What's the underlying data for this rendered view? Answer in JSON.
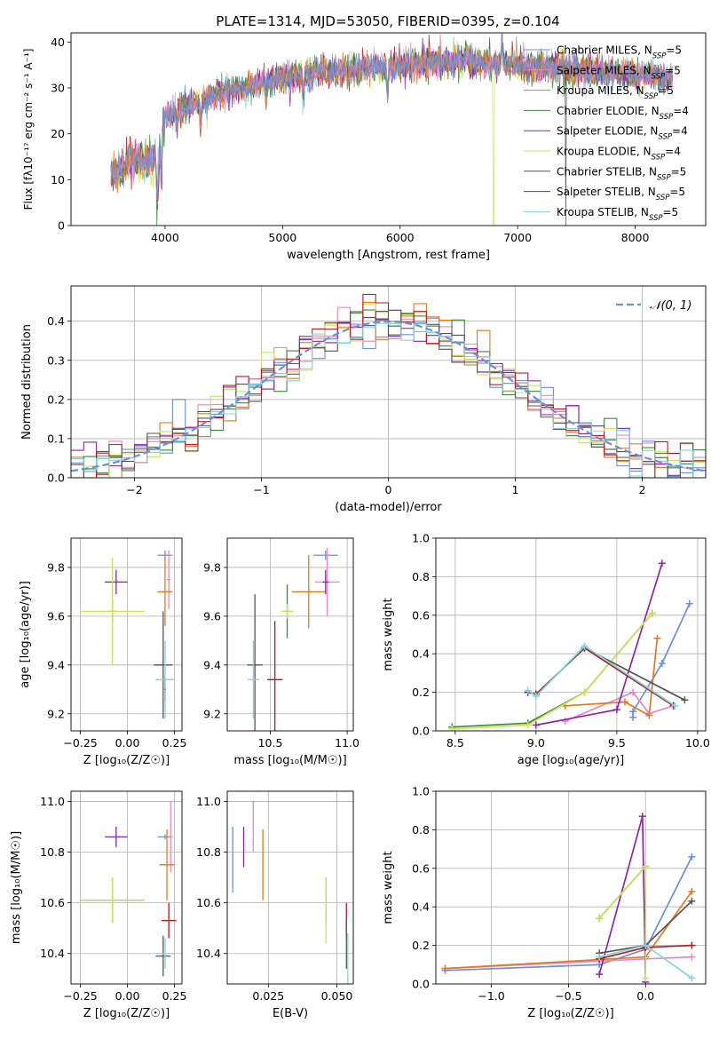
{
  "figure_title": "PLATE=1314, MJD=53050, FIBERID=0395, z=0.104",
  "colors": {
    "Chabrier MILES": "#6a8fdc",
    "Salpeter MILES": "#e787c5",
    "Kroupa MILES": "#e07b20",
    "Chabrier ELODIE": "#3a8a3a",
    "Salpeter ELODIE": "#8e24aa",
    "Kroupa ELODIE": "#c9e55a",
    "Chabrier STELIB": "#555555",
    "Salpeter STELIB": "#b71c1c",
    "Kroupa STELIB": "#7fd6e0"
  },
  "legend_prefix": [
    "Chabrier MILES, N",
    "Salpeter MILES, N",
    "Kroupa MILES, N",
    "Chabrier ELODIE, N",
    "Salpeter ELODIE, N",
    "Kroupa ELODIE, N",
    "Chabrier STELIB, N",
    "Salpeter STELIB, N",
    "Kroupa STELIB, N"
  ],
  "legend_suffix": [
    "=5",
    "=5",
    "=5",
    "=4",
    "=4",
    "=4",
    "=5",
    "=5",
    "=5"
  ],
  "chart_data": [
    {
      "type": "line",
      "xlabel": "wavelength [Angstrom, rest frame]",
      "ylabel": "Flux [fλ10⁻¹⁷ erg cm⁻² s⁻¹ A⁻¹]",
      "xlim": [
        3200,
        8600
      ],
      "ylim": [
        0,
        42
      ],
      "xticks": [
        "4000",
        "5000",
        "6000",
        "7000",
        "8000"
      ],
      "yticks": [
        "0",
        "10",
        "20",
        "30",
        "40"
      ],
      "x_range": [
        3540,
        8320
      ],
      "continuum": [
        [
          3540,
          11
        ],
        [
          3700,
          14
        ],
        [
          3800,
          14
        ],
        [
          3950,
          15
        ],
        [
          4000,
          24
        ],
        [
          4200,
          26
        ],
        [
          4400,
          28
        ],
        [
          4800,
          31
        ],
        [
          5200,
          33
        ],
        [
          5600,
          34
        ],
        [
          6000,
          35
        ],
        [
          6500,
          36
        ],
        [
          7000,
          35
        ],
        [
          7500,
          34
        ],
        [
          8000,
          33
        ],
        [
          8320,
          32
        ]
      ],
      "series": [
        {
          "name": "Chabrier MILES",
          "nssp": 5
        },
        {
          "name": "Salpeter MILES",
          "nssp": 5
        },
        {
          "name": "Kroupa MILES",
          "nssp": 5
        },
        {
          "name": "Chabrier ELODIE",
          "nssp": 4
        },
        {
          "name": "Salpeter ELODIE",
          "nssp": 4
        },
        {
          "name": "Kroupa ELODIE",
          "nssp": 4
        },
        {
          "name": "Chabrier STELIB",
          "nssp": 5
        },
        {
          "name": "Salpeter STELIB",
          "nssp": 5
        },
        {
          "name": "Kroupa STELIB",
          "nssp": 5
        }
      ]
    },
    {
      "type": "step",
      "xlabel": "(data-model)/error",
      "ylabel": "Normed distribution",
      "xlim": [
        -2.5,
        2.5
      ],
      "ylim": [
        0,
        0.49
      ],
      "xticks": [
        "−2",
        "−1",
        "0",
        "1",
        "2"
      ],
      "yticks": [
        "0.0",
        "0.1",
        "0.2",
        "0.3",
        "0.4"
      ],
      "reference_label": "𝒩(0, 1)",
      "bin_width": 0.1
    },
    {
      "type": "scatter",
      "xlabel": "Z [log₁₀(Z/Z☉)]",
      "ylabel": "age  [log₁₀(age/yr)]",
      "xlim": [
        -0.3,
        0.29
      ],
      "ylim": [
        9.13,
        9.92
      ],
      "xticks": [
        "−0.25",
        "0.00",
        "0.25"
      ],
      "yticks": [
        "9.2",
        "9.4",
        "9.6",
        "9.8"
      ],
      "points": [
        {
          "series": "Chabrier MILES",
          "x": 0.2,
          "y": 9.85,
          "xerr": 0.04,
          "yerr": 0.02
        },
        {
          "series": "Salpeter MILES",
          "x": 0.22,
          "y": 9.75,
          "xerr": 0.01,
          "yerr": 0.12
        },
        {
          "series": "Kroupa MILES",
          "x": 0.2,
          "y": 9.7,
          "xerr": 0.04,
          "yerr": 0.14
        },
        {
          "series": "Chabrier ELODIE",
          "x": -0.08,
          "y": 9.62,
          "xerr": 0.02,
          "yerr": 0.05
        },
        {
          "series": "Salpeter ELODIE",
          "x": -0.06,
          "y": 9.74,
          "xerr": 0.06,
          "yerr": 0.05
        },
        {
          "series": "Kroupa ELODIE",
          "x": -0.08,
          "y": 9.62,
          "xerr": 0.17,
          "yerr": 0.22
        },
        {
          "series": "Chabrier STELIB",
          "x": 0.19,
          "y": 9.4,
          "xerr": 0.05,
          "yerr": 0.22
        },
        {
          "series": "Salpeter STELIB",
          "x": 0.2,
          "y": 9.3,
          "xerr": 0.005,
          "yerr": 0.05
        },
        {
          "series": "Kroupa STELIB",
          "x": 0.2,
          "y": 9.34,
          "xerr": 0.05,
          "yerr": 0.16
        }
      ]
    },
    {
      "type": "scatter",
      "xlabel": "mass [log₁₀(M/M☉)]",
      "ylabel": "",
      "xlim": [
        10.22,
        11.04
      ],
      "ylim": [
        9.13,
        9.92
      ],
      "xticks": [
        "10.5",
        "11.0"
      ],
      "yticks": [
        "9.2",
        "9.4",
        "9.6",
        "9.8"
      ],
      "points": [
        {
          "series": "Chabrier MILES",
          "x": 10.86,
          "y": 9.85,
          "xerr": 0.08,
          "yerr": 0.02
        },
        {
          "series": "Salpeter MILES",
          "x": 10.87,
          "y": 9.74,
          "xerr": 0.08,
          "yerr": 0.14
        },
        {
          "series": "Kroupa MILES",
          "x": 10.75,
          "y": 9.7,
          "xerr": 0.11,
          "yerr": 0.15
        },
        {
          "series": "Chabrier ELODIE",
          "x": 10.61,
          "y": 9.62,
          "xerr": 0.02,
          "yerr": 0.11
        },
        {
          "series": "Salpeter ELODIE",
          "x": 10.86,
          "y": 9.74,
          "xerr": 0.02,
          "yerr": 0.05
        },
        {
          "series": "Kroupa ELODIE",
          "x": 10.61,
          "y": 9.62,
          "xerr": 0.04,
          "yerr": 0.03
        },
        {
          "series": "Chabrier STELIB",
          "x": 10.4,
          "y": 9.4,
          "xerr": 0.05,
          "yerr": 0.29
        },
        {
          "series": "Salpeter STELIB",
          "x": 10.53,
          "y": 9.34,
          "xerr": 0.05,
          "yerr": 0.24
        },
        {
          "series": "Kroupa STELIB",
          "x": 10.39,
          "y": 9.34,
          "xerr": 0.04,
          "yerr": 0.16
        }
      ]
    },
    {
      "type": "line",
      "xlabel": "age  [log₁₀(age/yr)]",
      "ylabel": "mass weight",
      "xlim": [
        8.38,
        10.05
      ],
      "ylim": [
        0,
        1.0
      ],
      "xticks": [
        "8.5",
        "9.0",
        "9.5",
        "10.0"
      ],
      "yticks": [
        "0.0",
        "0.2",
        "0.4",
        "0.6",
        "0.8",
        "1.0"
      ],
      "series": [
        {
          "name": "Chabrier MILES",
          "points": [
            [
              9.6,
              0.07
            ],
            [
              9.6,
              0.1
            ],
            [
              9.78,
              0.35
            ],
            [
              9.95,
              0.66
            ]
          ]
        },
        {
          "name": "Salpeter MILES",
          "points": [
            [
              9.18,
              0.05
            ],
            [
              9.6,
              0.2
            ],
            [
              9.7,
              0.09
            ],
            [
              9.85,
              0.13
            ]
          ]
        },
        {
          "name": "Kroupa MILES",
          "points": [
            [
              9.18,
              0.13
            ],
            [
              9.55,
              0.15
            ],
            [
              9.7,
              0.08
            ],
            [
              9.75,
              0.48
            ]
          ]
        },
        {
          "name": "Chabrier ELODIE",
          "points": [
            [
              8.48,
              0.02
            ],
            [
              8.95,
              0.04
            ],
            [
              9.3,
              0.2
            ],
            [
              9.72,
              0.61
            ]
          ]
        },
        {
          "name": "Salpeter ELODIE",
          "points": [
            [
              9.0,
              0.03
            ],
            [
              9.5,
              0.11
            ],
            [
              9.78,
              0.87
            ]
          ]
        },
        {
          "name": "Kroupa ELODIE",
          "points": [
            [
              8.48,
              0.01
            ],
            [
              8.95,
              0.03
            ],
            [
              9.3,
              0.2
            ],
            [
              9.72,
              0.61
            ]
          ]
        },
        {
          "name": "Chabrier STELIB",
          "points": [
            [
              8.95,
              0.2
            ],
            [
              9.0,
              0.19
            ],
            [
              9.3,
              0.43
            ],
            [
              9.92,
              0.16
            ]
          ]
        },
        {
          "name": "Salpeter STELIB",
          "points": [
            [
              8.95,
              0.2
            ],
            [
              9.0,
              0.19
            ],
            [
              9.3,
              0.43
            ],
            [
              9.85,
              0.13
            ]
          ]
        },
        {
          "name": "Kroupa STELIB",
          "points": [
            [
              8.95,
              0.21
            ],
            [
              9.0,
              0.18
            ],
            [
              9.3,
              0.44
            ],
            [
              9.86,
              0.13
            ]
          ]
        }
      ]
    },
    {
      "type": "scatter",
      "xlabel": "Z [log₁₀(Z/Z☉)]",
      "ylabel": "mass [log₁₀(M/M☉)]",
      "xlim": [
        -0.3,
        0.29
      ],
      "ylim": [
        10.28,
        11.04
      ],
      "xticks": [
        "−0.25",
        "0.00",
        "0.25"
      ],
      "yticks": [
        "10.4",
        "10.6",
        "10.8",
        "11.0"
      ],
      "points": [
        {
          "series": "Chabrier MILES",
          "x": 0.2,
          "y": 10.86,
          "xerr": 0.04,
          "yerr": 0.01
        },
        {
          "series": "Salpeter MILES",
          "x": 0.23,
          "y": 10.86,
          "xerr": 0.01,
          "yerr": 0.14
        },
        {
          "series": "Kroupa MILES",
          "x": 0.21,
          "y": 10.75,
          "xerr": 0.04,
          "yerr": 0.14
        },
        {
          "series": "Chabrier ELODIE",
          "x": -0.08,
          "y": 10.61,
          "xerr": 0.17,
          "yerr": 0.09
        },
        {
          "series": "Salpeter ELODIE",
          "x": -0.06,
          "y": 10.86,
          "xerr": 0.06,
          "yerr": 0.04
        },
        {
          "series": "Kroupa ELODIE",
          "x": -0.08,
          "y": 10.61,
          "xerr": 0.17,
          "yerr": 0.09
        },
        {
          "series": "Chabrier STELIB",
          "x": 0.19,
          "y": 10.39,
          "xerr": 0.04,
          "yerr": 0.08
        },
        {
          "series": "Salpeter STELIB",
          "x": 0.22,
          "y": 10.53,
          "xerr": 0.04,
          "yerr": 0.07
        },
        {
          "series": "Kroupa STELIB",
          "x": 0.2,
          "y": 10.4,
          "xerr": 0.05,
          "yerr": 0.06
        }
      ]
    },
    {
      "type": "scatter",
      "xlabel": "E(B-V)",
      "ylabel": "",
      "xlim": [
        0.01,
        0.056
      ],
      "ylim": [
        10.28,
        11.04
      ],
      "xticks": [
        "0.025",
        "0.050"
      ],
      "yticks": [
        "10.4",
        "10.6",
        "10.8",
        "11.0"
      ],
      "points": [
        {
          "series": "Chabrier MILES",
          "x": 0.012,
          "y": 10.77,
          "xerr": 0,
          "yerr": 0.13
        },
        {
          "series": "Salpeter MILES",
          "x": 0.0195,
          "y": 10.9,
          "xerr": 0,
          "yerr": 0.1
        },
        {
          "series": "Kroupa MILES",
          "x": 0.023,
          "y": 10.75,
          "xerr": 0,
          "yerr": 0.14
        },
        {
          "series": "Salpeter ELODIE",
          "x": 0.016,
          "y": 10.82,
          "xerr": 0,
          "yerr": 0.08
        },
        {
          "series": "Chabrier ELODIE",
          "x": 0.046,
          "y": 10.61,
          "xerr": 0,
          "yerr": 0.09
        },
        {
          "series": "Kroupa ELODIE",
          "x": 0.046,
          "y": 10.57,
          "xerr": 0,
          "yerr": 0.13
        },
        {
          "series": "Salpeter STELIB",
          "x": 0.0535,
          "y": 10.53,
          "xerr": 0,
          "yerr": 0.07
        },
        {
          "series": "Chabrier STELIB",
          "x": 0.0535,
          "y": 10.44,
          "xerr": 0,
          "yerr": 0.1
        },
        {
          "series": "Kroupa STELIB",
          "x": 0.054,
          "y": 10.38,
          "xerr": 0,
          "yerr": 0.1
        }
      ]
    },
    {
      "type": "line",
      "xlabel": "Z [log₁₀(Z/Z☉)]",
      "ylabel": "mass weight",
      "xlim": [
        -1.36,
        0.39
      ],
      "ylim": [
        0,
        1.0
      ],
      "xticks": [
        "−1.0",
        "−0.5",
        "0.0"
      ],
      "yticks": [
        "0.0",
        "0.2",
        "0.4",
        "0.6",
        "0.8",
        "1.0"
      ],
      "series": [
        {
          "name": "Chabrier MILES",
          "points": [
            [
              -1.3,
              0.07
            ],
            [
              -0.3,
              0.1
            ],
            [
              0.0,
              0.18
            ],
            [
              0.3,
              0.66
            ]
          ]
        },
        {
          "name": "Salpeter MILES",
          "points": [
            [
              -1.3,
              0.08
            ],
            [
              0.0,
              0.13
            ],
            [
              0.3,
              0.14
            ]
          ]
        },
        {
          "name": "Kroupa MILES",
          "points": [
            [
              -1.3,
              0.08
            ],
            [
              0.0,
              0.14
            ],
            [
              0.3,
              0.48
            ]
          ]
        },
        {
          "name": "Chabrier ELODIE",
          "points": [
            [
              -0.3,
              0.34
            ],
            [
              0.0,
              0.61
            ]
          ]
        },
        {
          "name": "Salpeter ELODIE",
          "points": [
            [
              -0.3,
              0.05
            ],
            [
              -0.02,
              0.87
            ],
            [
              0.0,
              0.01
            ]
          ]
        },
        {
          "name": "Kroupa ELODIE",
          "points": [
            [
              -0.3,
              0.34
            ],
            [
              0.0,
              0.61
            ],
            [
              0.0,
              0.03
            ]
          ]
        },
        {
          "name": "Chabrier STELIB",
          "points": [
            [
              -0.3,
              0.16
            ],
            [
              0.0,
              0.2
            ],
            [
              0.3,
              0.43
            ]
          ]
        },
        {
          "name": "Salpeter STELIB",
          "points": [
            [
              -0.3,
              0.13
            ],
            [
              0.0,
              0.19
            ],
            [
              0.3,
              0.2
            ]
          ]
        },
        {
          "name": "Kroupa STELIB",
          "points": [
            [
              -0.3,
              0.14
            ],
            [
              0.0,
              0.2
            ],
            [
              0.3,
              0.03
            ]
          ]
        }
      ]
    }
  ]
}
